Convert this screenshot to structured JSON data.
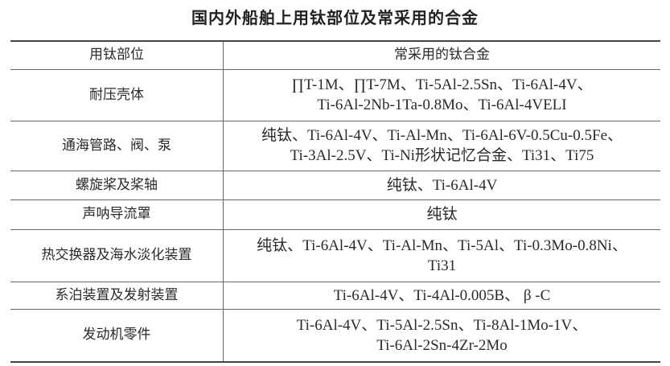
{
  "title": "国内外船舶上用钛部位及常采用的合金",
  "headers": {
    "part": "用钛部位",
    "alloy": "常采用的钛合金"
  },
  "rows": [
    {
      "part": "耐压壳体",
      "line1": "∏T-1M、∏T-7M、Ti-5Al-2.5Sn、Ti-6Al-4V、",
      "line2": "Ti-6Al-2Nb-1Ta-0.8Mo、Ti-6Al-4VELI"
    },
    {
      "part": "通海管路、阀、泵",
      "line1": "纯钛、Ti-6Al-4V、Ti-Al-Mn、Ti-6Al-6V-0.5Cu-0.5Fe、",
      "line2": "Ti-3Al-2.5V、Ti-Ni形状记忆合金、Ti31、Ti75"
    },
    {
      "part": "螺旋桨及桨轴",
      "line1": "纯钛、Ti-6Al-4V",
      "line2": ""
    },
    {
      "part": "声呐导流罩",
      "line1": "纯钛",
      "line2": ""
    },
    {
      "part": "热交换器及海水淡化装置",
      "line1": "纯钛、Ti-6Al-4V、Ti-Al-Mn、Ti-5Al、Ti-0.3Mo-0.8Ni、",
      "line2": "Ti31"
    },
    {
      "part": "系泊装置及发射装置",
      "line1": "Ti-6Al-4V、Ti-4Al-0.005B、 β -C",
      "line2": ""
    },
    {
      "part": "发动机零件",
      "line1": "Ti-6Al-4V、Ti-5Al-2.5Sn、Ti-8Al-1Mo-1V、",
      "line2": "Ti-6Al-2Sn-4Zr-2Mo"
    }
  ]
}
